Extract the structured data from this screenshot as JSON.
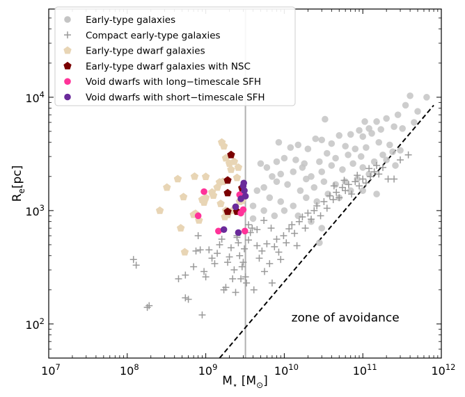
{
  "chart_data": {
    "type": "scatter",
    "xscale": "log",
    "yscale": "log",
    "xlim": [
      10000000,
      1000000000000
    ],
    "ylim": [
      50,
      60000
    ],
    "x_ticks": [
      {
        "value": 10000000,
        "base": "10",
        "exp": "7"
      },
      {
        "value": 100000000,
        "base": "10",
        "exp": "8"
      },
      {
        "value": 1000000000,
        "base": "10",
        "exp": "9"
      },
      {
        "value": 10000000000,
        "base": "10",
        "exp": "10"
      },
      {
        "value": 100000000000,
        "base": "10",
        "exp": "11"
      },
      {
        "value": 1000000000000,
        "base": "10",
        "exp": "12"
      }
    ],
    "y_ticks": [
      {
        "value": 100,
        "base": "10",
        "exp": "2"
      },
      {
        "value": 1000,
        "base": "10",
        "exp": "3"
      },
      {
        "value": 10000,
        "base": "10",
        "exp": "4"
      }
    ],
    "xlabel": {
      "main": "M",
      "sub": "⋆",
      "mid": " [M",
      "sub2": "⊙",
      "end": "]"
    },
    "ylabel": {
      "main": "R",
      "sub": "e",
      "end": "[pc]"
    },
    "vline": {
      "x": 3200000000,
      "color": "#b0b0b0"
    },
    "avoidance_line": {
      "x": [
        1500000000,
        800000000000
      ],
      "y": [
        50,
        8500
      ]
    },
    "annotation": {
      "text": "zone of avoidance",
      "x": 60000000000,
      "y": 105
    },
    "legend_position": "upper-left",
    "series": [
      {
        "name": "Early-type galaxies",
        "marker": "circle",
        "color": "#c4c4c4",
        "points": [
          [
            650000000000.0,
            10000
          ],
          [
            400000000000.0,
            10300
          ],
          [
            350000000000.0,
            8500
          ],
          [
            500000000000.0,
            7500
          ],
          [
            280000000000.0,
            7000
          ],
          [
            450000000000.0,
            6000
          ],
          [
            200000000000.0,
            6500
          ],
          [
            150000000000.0,
            6100
          ],
          [
            120000000000.0,
            5300
          ],
          [
            250000000000.0,
            5500
          ],
          [
            320000000000.0,
            5300
          ],
          [
            130000000000.0,
            4800
          ],
          [
            100000000000.0,
            4500
          ],
          [
            90000000000.0,
            5100
          ],
          [
            70000000000.0,
            4700
          ],
          [
            50000000000.0,
            4600
          ],
          [
            30000000000.0,
            4200
          ],
          [
            25000000000.0,
            4300
          ],
          [
            15000000000.0,
            3800
          ],
          [
            12000000000.0,
            3600
          ],
          [
            20000000000.0,
            3500
          ],
          [
            40000000000.0,
            3900
          ],
          [
            60000000000.0,
            3700
          ],
          [
            80000000000.0,
            3500
          ],
          [
            110000000000.0,
            3600
          ],
          [
            160000000000.0,
            4000
          ],
          [
            220000000000.0,
            3800
          ],
          [
            300000000000.0,
            3400
          ],
          [
            180000000000.0,
            3100
          ],
          [
            95000000000.0,
            3000
          ],
          [
            65000000000.0,
            3100
          ],
          [
            45000000000.0,
            2900
          ],
          [
            35000000000.0,
            3200
          ],
          [
            28000000000.0,
            2700
          ],
          [
            18000000000.0,
            2600
          ],
          [
            14000000000.0,
            2800
          ],
          [
            10000000000.0,
            2900
          ],
          [
            8000000000.0,
            2700
          ],
          [
            6000000000.0,
            2400
          ],
          [
            5000000000.0,
            2600
          ],
          [
            7000000000.0,
            2000
          ],
          [
            9000000000.0,
            2100
          ],
          [
            13000000000.0,
            2200
          ],
          [
            17000000000.0,
            2400
          ],
          [
            22000000000.0,
            2000
          ],
          [
            30000000000.0,
            2200
          ],
          [
            40000000000.0,
            2500
          ],
          [
            55000000000.0,
            2300
          ],
          [
            75000000000.0,
            2600
          ],
          [
            100000000000.0,
            2400
          ],
          [
            140000000000.0,
            2700
          ],
          [
            200000000000.0,
            2800
          ],
          [
            260000000000.0,
            2500
          ],
          [
            120000000000.0,
            2100
          ],
          [
            85000000000.0,
            1900
          ],
          [
            60000000000.0,
            1800
          ],
          [
            45000000000.0,
            1700
          ],
          [
            32000000000.0,
            1800
          ],
          [
            24000000000.0,
            1600
          ],
          [
            16000000000.0,
            1500
          ],
          [
            11000000000.0,
            1700
          ],
          [
            8000000000.0,
            1800
          ],
          [
            5500000000.0,
            1600
          ],
          [
            4500000000.0,
            1500
          ],
          [
            6500000000.0,
            1300
          ],
          [
            9000000000.0,
            1200
          ],
          [
            13000000000.0,
            1100
          ],
          [
            19000000000.0,
            1300
          ],
          [
            26000000000.0,
            1200
          ],
          [
            36000000000.0,
            1400
          ],
          [
            50000000000.0,
            1300
          ],
          [
            70000000000.0,
            1500
          ],
          [
            100000000000.0,
            1500
          ],
          [
            150000000000.0,
            1400
          ],
          [
            4000000000.0,
            1100
          ],
          [
            5500000000.0,
            1000
          ],
          [
            7500000000.0,
            900
          ],
          [
            10000000000.0,
            1000
          ],
          [
            15000000000.0,
            900
          ],
          [
            22000000000.0,
            800
          ],
          [
            30000000000.0,
            700
          ],
          [
            4000000000.0,
            850
          ],
          [
            28000000000.0,
            520
          ],
          [
            19000000000.0,
            1900
          ],
          [
            240000000000.0,
            3300
          ],
          [
            8500000000.0,
            4000
          ],
          [
            33000000000.0,
            6400
          ],
          [
            170000000000.0,
            5200
          ],
          [
            106000000000.0,
            6100
          ]
        ]
      },
      {
        "name": "Compact early-type galaxies",
        "marker": "plus",
        "color": "#999999",
        "points": [
          [
            120000000.0,
            370
          ],
          [
            130000000.0,
            330
          ],
          [
            180000000.0,
            140
          ],
          [
            190000000.0,
            145
          ],
          [
            450000000.0,
            250
          ],
          [
            550000000.0,
            270
          ],
          [
            550000000.0,
            170
          ],
          [
            600000000.0,
            165
          ],
          [
            700000000.0,
            320
          ],
          [
            750000000.0,
            440
          ],
          [
            800000000.0,
            600
          ],
          [
            850000000.0,
            450
          ],
          [
            900000000.0,
            120
          ],
          [
            950000000.0,
            290
          ],
          [
            1000000000.0,
            260
          ],
          [
            1100000000.0,
            450
          ],
          [
            1200000000.0,
            380
          ],
          [
            1300000000.0,
            340
          ],
          [
            1400000000.0,
            420
          ],
          [
            1500000000.0,
            500
          ],
          [
            1600000000.0,
            560
          ],
          [
            1700000000.0,
            200
          ],
          [
            1800000000.0,
            210
          ],
          [
            1900000000.0,
            350
          ],
          [
            2000000000.0,
            390
          ],
          [
            2100000000.0,
            470
          ],
          [
            2200000000.0,
            250
          ],
          [
            2300000000.0,
            300
          ],
          [
            2400000000.0,
            190
          ],
          [
            2500000000.0,
            580
          ],
          [
            2600000000.0,
            520
          ],
          [
            2700000000.0,
            400
          ],
          [
            2800000000.0,
            250
          ],
          [
            2900000000.0,
            320
          ],
          [
            3000000000.0,
            350
          ],
          [
            3100000000.0,
            460
          ],
          [
            3200000000.0,
            260
          ],
          [
            3300000000.0,
            230
          ],
          [
            3500000000.0,
            550
          ],
          [
            3700000000.0,
            640
          ],
          [
            3900000000.0,
            700
          ],
          [
            4100000000.0,
            200
          ],
          [
            4500000000.0,
            490
          ],
          [
            4800000000.0,
            380
          ],
          [
            5200000000.0,
            440
          ],
          [
            5600000000.0,
            290
          ],
          [
            6000000000.0,
            510
          ],
          [
            6500000000.0,
            340
          ],
          [
            7000000000.0,
            230
          ],
          [
            7500000000.0,
            480
          ],
          [
            8000000000.0,
            560
          ],
          [
            8500000000.0,
            430
          ],
          [
            9000000000.0,
            370
          ],
          [
            9800000000.0,
            600
          ],
          [
            10600000000.0,
            520
          ],
          [
            11500000000.0,
            690
          ],
          [
            12500000000.0,
            750
          ],
          [
            13500000000.0,
            630
          ],
          [
            14500000000.0,
            490
          ],
          [
            15500000000.0,
            800
          ],
          [
            17000000000.0,
            880
          ],
          [
            18500000000.0,
            700
          ],
          [
            20000000000.0,
            950
          ],
          [
            22000000000.0,
            840
          ],
          [
            24000000000.0,
            1000
          ],
          [
            26000000000.0,
            1100
          ],
          [
            29000000000.0,
            900
          ],
          [
            32000000000.0,
            1200
          ],
          [
            35000000000.0,
            1050
          ],
          [
            38000000000.0,
            1350
          ],
          [
            42000000000.0,
            1250
          ],
          [
            46000000000.0,
            1450
          ],
          [
            50000000000.0,
            1300
          ],
          [
            55000000000.0,
            1600
          ],
          [
            60000000000.0,
            1500
          ],
          [
            66000000000.0,
            1700
          ],
          [
            72000000000.0,
            1400
          ],
          [
            80000000000.0,
            1800
          ],
          [
            90000000000.0,
            1650
          ],
          [
            100000000000.0,
            1900
          ],
          [
            110000000000.0,
            1750
          ],
          [
            125000000000.0,
            2000
          ],
          [
            140000000000.0,
            2200
          ],
          [
            160000000000.0,
            2100
          ],
          [
            180000000000.0,
            2400
          ],
          [
            210000000000.0,
            1900
          ],
          [
            250000000000.0,
            1900
          ],
          [
            300000000000.0,
            2800
          ],
          [
            380000000000.0,
            3100
          ],
          [
            43000000000.0,
            1650
          ],
          [
            58000000000.0,
            1850
          ],
          [
            85000000000.0,
            2050
          ],
          [
            120000000000.0,
            2350
          ],
          [
            150000000000.0,
            2500
          ],
          [
            2500000000.0,
            600
          ],
          [
            3500000000.0,
            750
          ],
          [
            4500000000.0,
            680
          ],
          [
            5500000000.0,
            820
          ],
          [
            6800000000.0,
            700
          ]
        ]
      },
      {
        "name": "Early-type dwarf galaxies",
        "marker": "pentagon",
        "color": "#e8d5b5",
        "points": [
          [
            260000000.0,
            1000
          ],
          [
            320000000.0,
            1600
          ],
          [
            440000000.0,
            1900
          ],
          [
            480000000.0,
            700
          ],
          [
            520000000.0,
            1320
          ],
          [
            540000000.0,
            430
          ],
          [
            700000000.0,
            920
          ],
          [
            720000000.0,
            2000
          ],
          [
            740000000.0,
            940
          ],
          [
            820000000.0,
            820
          ],
          [
            900000000.0,
            1250
          ],
          [
            950000000.0,
            1180
          ],
          [
            1000000000.0,
            1990
          ],
          [
            1000000000.0,
            1300
          ],
          [
            1200000000.0,
            1450
          ],
          [
            1250000000.0,
            1360
          ],
          [
            1400000000.0,
            1600
          ],
          [
            1500000000.0,
            1780
          ],
          [
            1600000000.0,
            4000
          ],
          [
            1700000000.0,
            3700
          ],
          [
            1800000000.0,
            2900
          ],
          [
            2000000000.0,
            2600
          ],
          [
            2100000000.0,
            2300
          ],
          [
            2300000000.0,
            2700
          ],
          [
            2500000000.0,
            1950
          ],
          [
            2600000000.0,
            2400
          ],
          [
            1550000000.0,
            1150
          ],
          [
            1750000000.0,
            880
          ],
          [
            1900000000.0,
            920
          ],
          [
            2200000000.0,
            1000
          ],
          [
            2400000000.0,
            1060
          ],
          [
            2700000000.0,
            1200
          ],
          [
            2900000000.0,
            1220
          ],
          [
            1650000000.0,
            1800
          ],
          [
            1800000000.0,
            1000
          ]
        ]
      },
      {
        "name": "Early-type dwarf galaxies with NSC",
        "marker": "pentagon",
        "color": "#7a0000",
        "points": [
          [
            2100000000.0,
            3100
          ],
          [
            1900000000.0,
            1850
          ],
          [
            1900000000.0,
            1430
          ],
          [
            1900000000.0,
            980
          ],
          [
            2500000000.0,
            980
          ],
          [
            2900000000.0,
            1580
          ]
        ]
      },
      {
        "name": "Void dwarfs with long−timescale SFH",
        "marker": "circle",
        "color": "#ff3399",
        "points": [
          [
            800000000.0,
            900
          ],
          [
            950000000.0,
            1470
          ],
          [
            1450000000.0,
            660
          ],
          [
            2700000000.0,
            1380
          ],
          [
            2800000000.0,
            950
          ],
          [
            3000000000.0,
            1020
          ],
          [
            3150000000.0,
            660
          ]
        ]
      },
      {
        "name": "Void dwarfs with short−timescale SFH",
        "marker": "circle",
        "color": "#6a2a9a",
        "points": [
          [
            1700000000.0,
            680
          ],
          [
            2400000000.0,
            1080
          ],
          [
            2600000000.0,
            640
          ],
          [
            2800000000.0,
            1270
          ],
          [
            3000000000.0,
            1650
          ],
          [
            3050000000.0,
            1750
          ],
          [
            3100000000.0,
            1500
          ],
          [
            3200000000.0,
            1340
          ]
        ]
      }
    ]
  }
}
